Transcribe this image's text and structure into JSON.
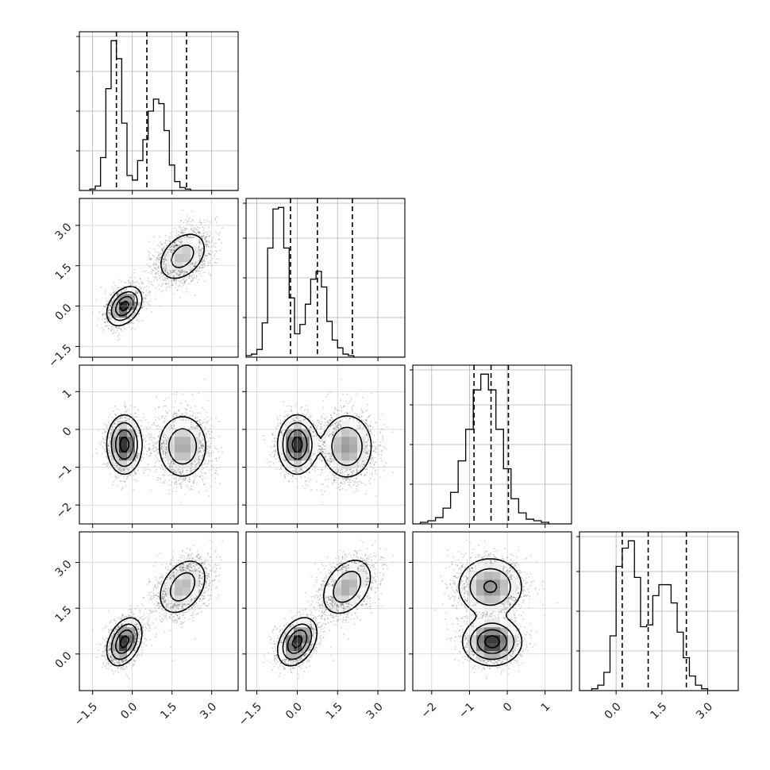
{
  "chart_data": {
    "type": "corner",
    "title": "",
    "parameters": [
      "",
      "",
      "",
      ""
    ],
    "ranges": [
      [
        -2.0,
        4.0
      ],
      [
        -1.9,
        4.0
      ],
      [
        -2.5,
        1.7
      ],
      [
        -1.2,
        4.0
      ]
    ],
    "axis_ticks": [
      [
        "-1.5",
        "0.0",
        "1.5",
        "3.0"
      ],
      [
        "-1.5",
        "0.0",
        "1.5",
        "3.0"
      ],
      [
        "-2",
        "-1",
        "0",
        "1"
      ],
      [
        "0.0",
        "1.5",
        "3.0"
      ]
    ],
    "grid": true,
    "modes": [
      {
        "weight": 0.5,
        "mean": [
          -0.3,
          0.0,
          -0.4,
          0.4
        ],
        "sd": [
          0.32,
          0.35,
          0.38,
          0.38
        ]
      },
      {
        "weight": 0.5,
        "mean": [
          1.9,
          1.85,
          -0.45,
          2.2
        ],
        "sd": [
          0.5,
          0.5,
          0.45,
          0.5
        ]
      }
    ],
    "quantiles": [
      [
        -0.6,
        0.55,
        2.05
      ],
      [
        -0.25,
        0.75,
        2.05
      ],
      [
        -0.88,
        -0.43,
        0.03
      ],
      [
        0.2,
        1.05,
        2.3
      ]
    ],
    "marginals": [
      {
        "bin_start": -2.0,
        "bin_width": 0.2,
        "counts": [
          0,
          0,
          1,
          3,
          22,
          68,
          100,
          88,
          45,
          10,
          7,
          20,
          34,
          53,
          61,
          58,
          40,
          17,
          6,
          2,
          1,
          0,
          0,
          0,
          0,
          0,
          0,
          0,
          0,
          0
        ]
      },
      {
        "bin_start": -1.9,
        "bin_width": 0.2,
        "counts": [
          1,
          2,
          5,
          22,
          70,
          95,
          96,
          70,
          38,
          15,
          21,
          34,
          50,
          55,
          45,
          23,
          11,
          6,
          2,
          1,
          0,
          0,
          0,
          0,
          0,
          0,
          0,
          0,
          0,
          0
        ]
      },
      {
        "bin_start": -2.5,
        "bin_width": 0.2,
        "counts": [
          0,
          1,
          2,
          4,
          10,
          20,
          40,
          60,
          85,
          95,
          85,
          60,
          35,
          16,
          7,
          3,
          2,
          1,
          0,
          0,
          0
        ]
      },
      {
        "bin_start": -1.2,
        "bin_width": 0.2,
        "counts": [
          0,
          0,
          1,
          3,
          10,
          30,
          68,
          78,
          82,
          62,
          35,
          36,
          52,
          58,
          58,
          48,
          32,
          18,
          8,
          3,
          1,
          0,
          0,
          0,
          0,
          0
        ]
      }
    ]
  }
}
